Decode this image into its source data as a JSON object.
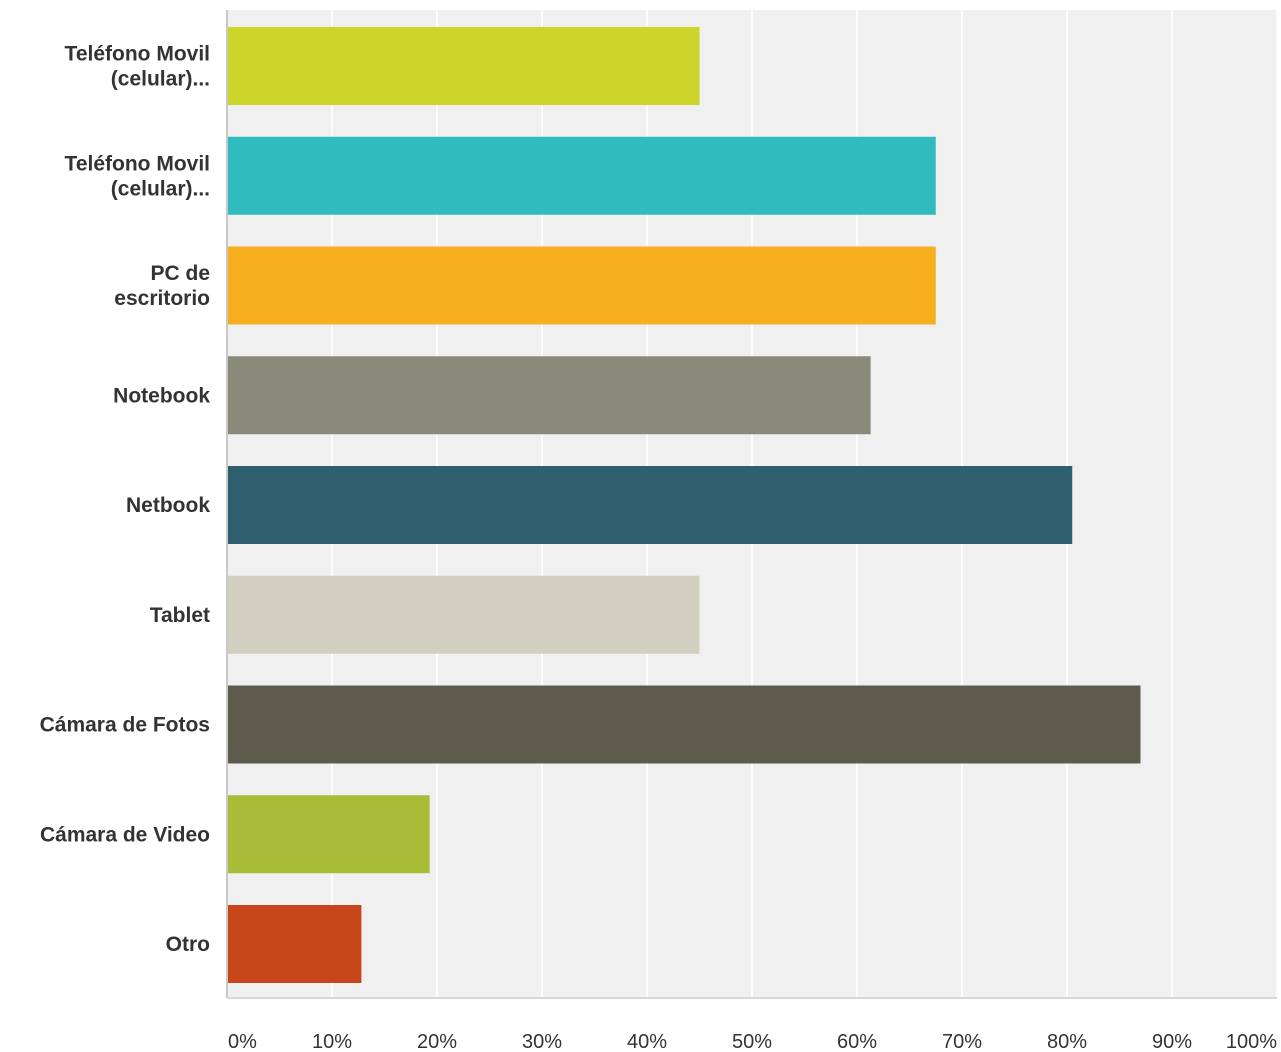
{
  "chart_data": {
    "type": "bar",
    "orientation": "horizontal",
    "categories": [
      [
        "Teléfono Movil",
        "(celular)..."
      ],
      [
        "Teléfono Movil",
        "(celular)..."
      ],
      [
        "PC de",
        "escritorio"
      ],
      [
        "Notebook"
      ],
      [
        "Netbook"
      ],
      [
        "Tablet"
      ],
      [
        "Cámara de Fotos"
      ],
      [
        "Cámara de Video"
      ],
      [
        "Otro"
      ]
    ],
    "values": [
      45,
      67.5,
      67.5,
      61.3,
      80.5,
      45,
      87,
      19.3,
      12.8
    ],
    "colors": [
      "#cdd42a",
      "#30bcbf",
      "#f7ae1f",
      "#898a79",
      "#2f5f6e",
      "#d0cfc0",
      "#5c5b4c",
      "#a8bc37",
      "#c6461a"
    ],
    "xlim": [
      0,
      100
    ],
    "x_ticks": [
      0,
      10,
      20,
      30,
      40,
      50,
      60,
      70,
      80,
      90,
      100
    ],
    "x_tick_labels": [
      "0%",
      "10%",
      "20%",
      "30%",
      "40%",
      "50%",
      "60%",
      "70%",
      "80%",
      "90%",
      "100%"
    ],
    "grid": true,
    "background_color": "#f0f0f0",
    "grid_color": "#ffffff"
  }
}
